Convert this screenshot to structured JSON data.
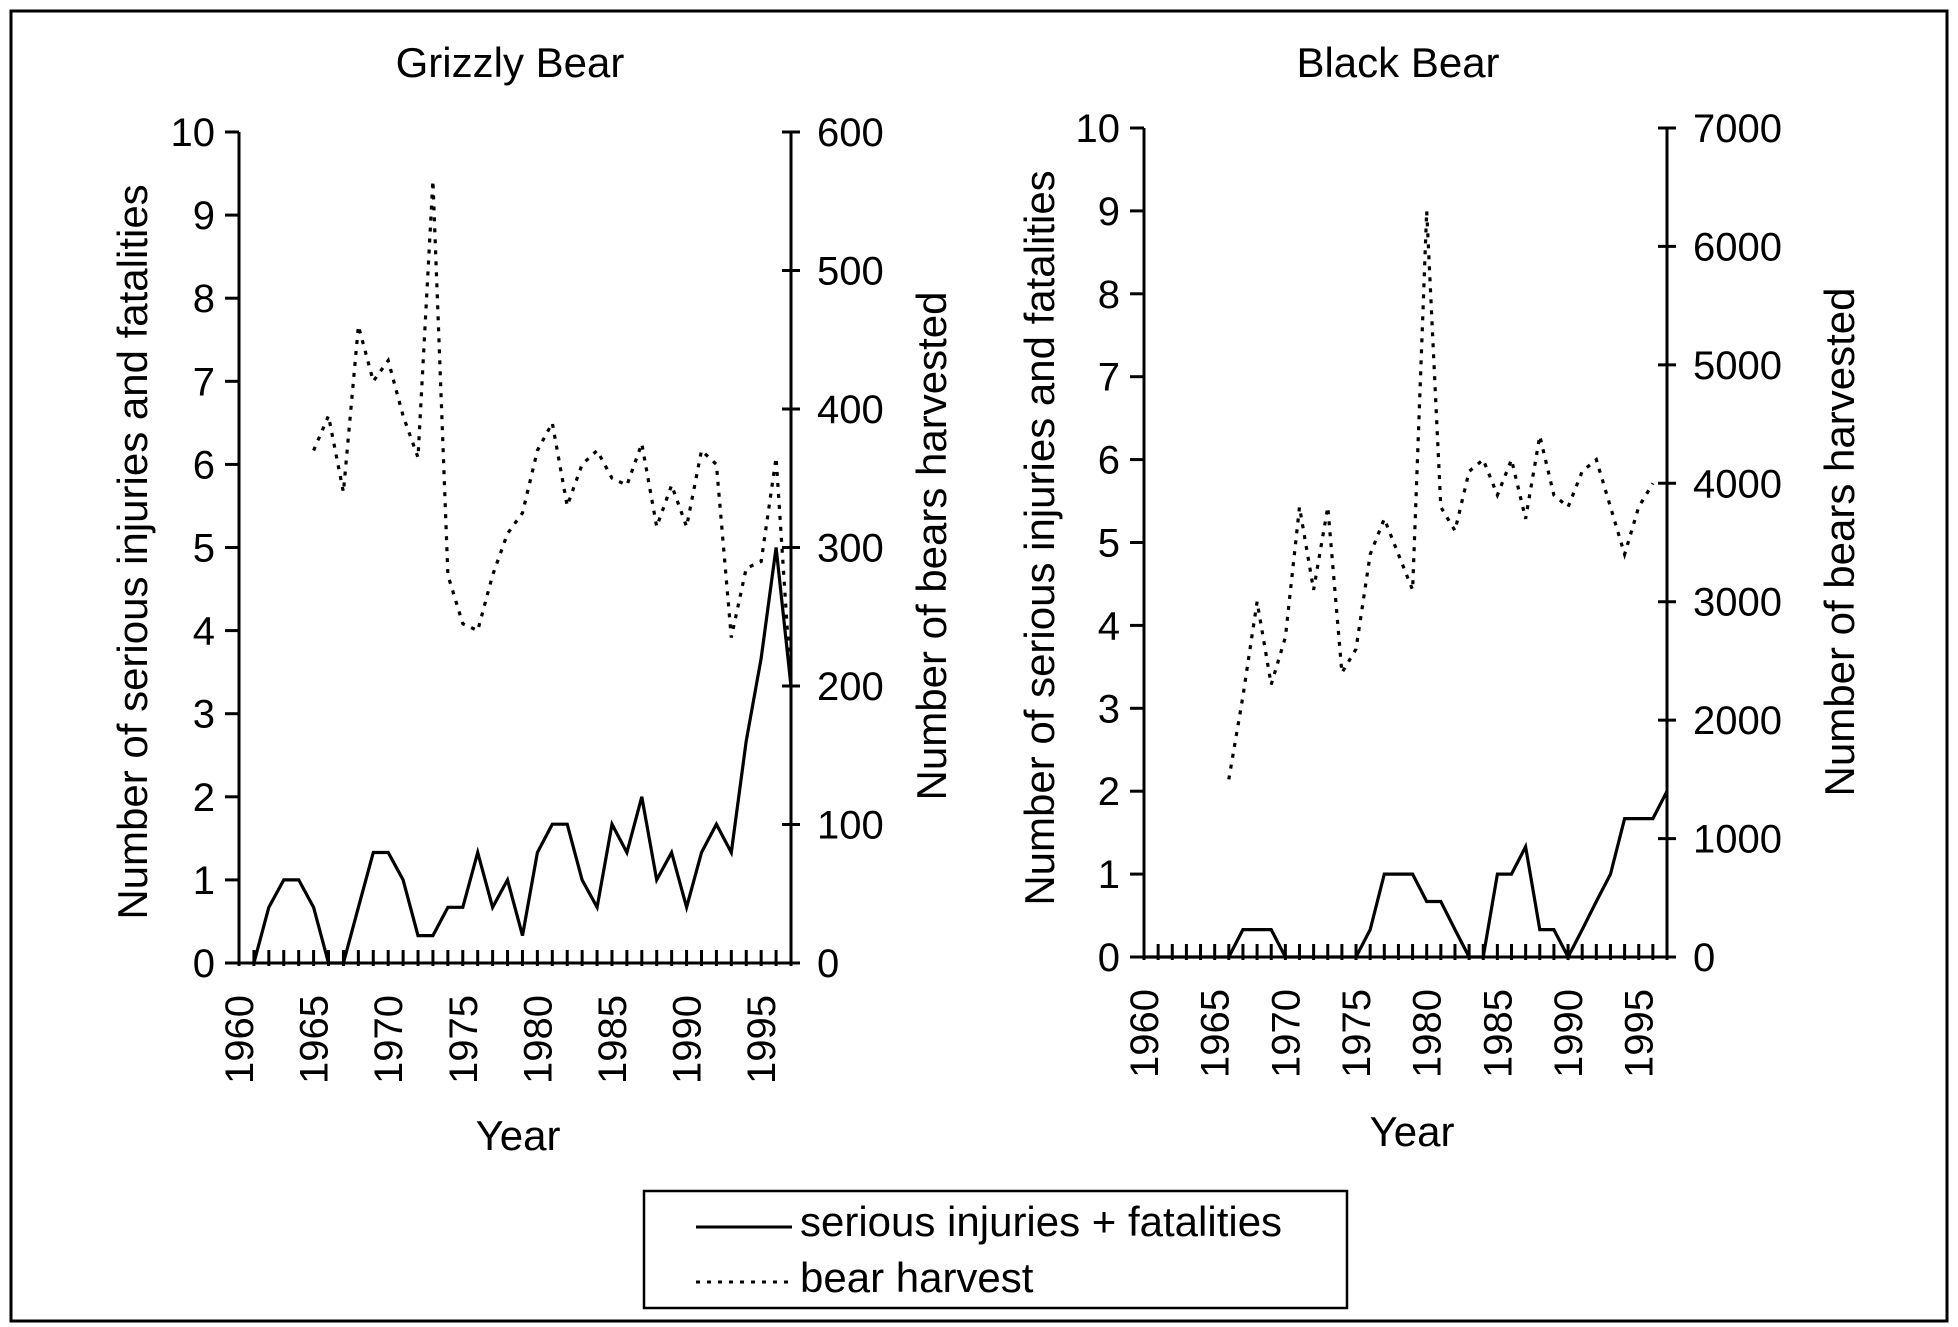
{
  "legend": {
    "items": [
      {
        "label": "serious injuries + fatalities",
        "style": "solid"
      },
      {
        "label": "bear harvest",
        "style": "dotted"
      }
    ]
  },
  "chart_data": [
    {
      "type": "line",
      "title": "Grizzly Bear",
      "xlabel": "Year",
      "ylabel_left": "Number of serious injuries and fatalities",
      "ylabel_right": "Number of bears harvested",
      "xlim": [
        1960,
        1997
      ],
      "ylim_left": [
        0,
        10
      ],
      "ylim_right": [
        0,
        600
      ],
      "xticks": [
        1960,
        1965,
        1970,
        1975,
        1980,
        1985,
        1990,
        1995
      ],
      "yticks_left": [
        0,
        1,
        2,
        3,
        4,
        5,
        6,
        7,
        8,
        9,
        10
      ],
      "yticks_right": [
        0,
        100,
        200,
        300,
        400,
        500,
        600
      ],
      "grid": false,
      "series": [
        {
          "name": "serious injuries + fatalities",
          "axis": "left",
          "style": "solid",
          "x": [
            1961,
            1962,
            1963,
            1964,
            1965,
            1966,
            1967,
            1968,
            1969,
            1970,
            1971,
            1972,
            1973,
            1974,
            1975,
            1976,
            1977,
            1978,
            1979,
            1980,
            1981,
            1982,
            1983,
            1984,
            1985,
            1986,
            1987,
            1988,
            1989,
            1990,
            1991,
            1992,
            1993,
            1994,
            1995,
            1996,
            1997
          ],
          "values": [
            0,
            0.67,
            1,
            1,
            0.67,
            0,
            0,
            0.67,
            1.33,
            1.33,
            1,
            0.33,
            0.33,
            0.67,
            0.67,
            1.33,
            0.67,
            1,
            0.33,
            1.33,
            1.67,
            1.67,
            1,
            0.67,
            1.67,
            1.33,
            2,
            1,
            1.33,
            0.67,
            1.33,
            1.67,
            1.33,
            2.67,
            3.67,
            5,
            3.33
          ]
        },
        {
          "name": "bear harvest",
          "axis": "right",
          "style": "dotted",
          "x": [
            1965,
            1966,
            1967,
            1968,
            1969,
            1970,
            1971,
            1972,
            1973,
            1974,
            1975,
            1976,
            1977,
            1978,
            1979,
            1980,
            1981,
            1982,
            1983,
            1984,
            1985,
            1986,
            1987,
            1988,
            1989,
            1990,
            1991,
            1992,
            1993,
            1994,
            1995,
            1996,
            1997
          ],
          "values": [
            370,
            395,
            340,
            460,
            420,
            435,
            395,
            365,
            565,
            280,
            245,
            240,
            280,
            310,
            325,
            370,
            390,
            330,
            360,
            370,
            350,
            345,
            375,
            315,
            345,
            315,
            370,
            360,
            235,
            285,
            290,
            365,
            200
          ]
        }
      ]
    },
    {
      "type": "line",
      "title": "Black Bear",
      "xlabel": "Year",
      "ylabel_left": "Number of serious injuries and fatalities",
      "ylabel_right": "Number of bears harvested",
      "xlim": [
        1960,
        1997
      ],
      "ylim_left": [
        0,
        10
      ],
      "ylim_right": [
        0,
        7000
      ],
      "xticks": [
        1960,
        1965,
        1970,
        1975,
        1980,
        1985,
        1990,
        1995
      ],
      "yticks_left": [
        0,
        1,
        2,
        3,
        4,
        5,
        6,
        7,
        8,
        9,
        10
      ],
      "yticks_right": [
        0,
        1000,
        2000,
        3000,
        4000,
        5000,
        6000,
        7000
      ],
      "grid": false,
      "series": [
        {
          "name": "serious injuries + fatalities",
          "axis": "left",
          "style": "solid",
          "x": [
            1960,
            1961,
            1962,
            1963,
            1964,
            1965,
            1966,
            1967,
            1968,
            1969,
            1970,
            1971,
            1972,
            1973,
            1974,
            1975,
            1976,
            1977,
            1978,
            1979,
            1980,
            1981,
            1982,
            1983,
            1984,
            1985,
            1986,
            1987,
            1988,
            1989,
            1990,
            1991,
            1992,
            1993,
            1994,
            1995,
            1996,
            1997
          ],
          "values": [
            0,
            0,
            0,
            0,
            0,
            0,
            0,
            0.33,
            0.33,
            0.33,
            0,
            0,
            0,
            0,
            0,
            0,
            0.33,
            1,
            1,
            1,
            0.67,
            0.67,
            0.33,
            0,
            0,
            1,
            1,
            1.33,
            0.33,
            0.33,
            0,
            0.33,
            0.67,
            1,
            1.67,
            1.67,
            1.67,
            2
          ]
        },
        {
          "name": "bear harvest",
          "axis": "right",
          "style": "dotted",
          "x": [
            1966,
            1967,
            1968,
            1969,
            1970,
            1971,
            1972,
            1973,
            1974,
            1975,
            1976,
            1977,
            1978,
            1979,
            1980,
            1981,
            1982,
            1983,
            1984,
            1985,
            1986,
            1987,
            1988,
            1989,
            1990,
            1991,
            1992,
            1993,
            1994,
            1995,
            1996
          ],
          "values": [
            1500,
            2200,
            3000,
            2300,
            2700,
            3800,
            3100,
            3800,
            2400,
            2600,
            3400,
            3700,
            3400,
            3100,
            6300,
            3800,
            3600,
            4100,
            4200,
            3900,
            4200,
            3700,
            4400,
            3900,
            3800,
            4100,
            4200,
            3800,
            3400,
            3800,
            4000
          ]
        }
      ]
    }
  ]
}
